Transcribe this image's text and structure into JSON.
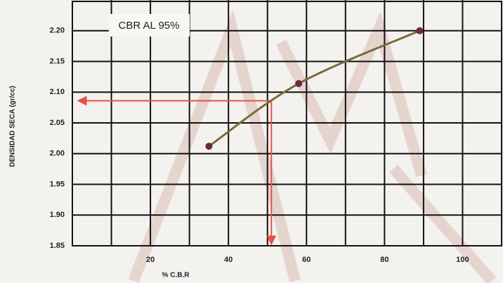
{
  "chart_data": {
    "type": "line",
    "annotation": "CBR AL 95%",
    "xlabel": "% C.B.R",
    "ylabel": "DENSIDAD SECA (gr/cc)",
    "xlim": [
      0,
      110
    ],
    "xticks": [
      20,
      40,
      60,
      80,
      100
    ],
    "xminor_ticks": [
      10,
      30,
      50,
      70,
      90
    ],
    "ylim": [
      1.85,
      2.25
    ],
    "yticks": [
      1.85,
      {
        "value": 1.9,
        "label": "1.90"
      },
      1.95,
      {
        "value": 2.0,
        "label": "2.00"
      },
      2.05,
      {
        "value": 2.1,
        "label": "2.10"
      },
      2.15,
      {
        "value": 2.2,
        "label": "2.20"
      }
    ],
    "grid": true,
    "x": [
      35,
      58,
      89
    ],
    "series": [
      {
        "color": "#7a6b3c",
        "marker_color": "#6b2a3a",
        "values": [
          2.012,
          2.114,
          2.2
        ]
      }
    ],
    "reference": {
      "x": 51,
      "y": 2.086,
      "color": "#e8504a"
    }
  }
}
